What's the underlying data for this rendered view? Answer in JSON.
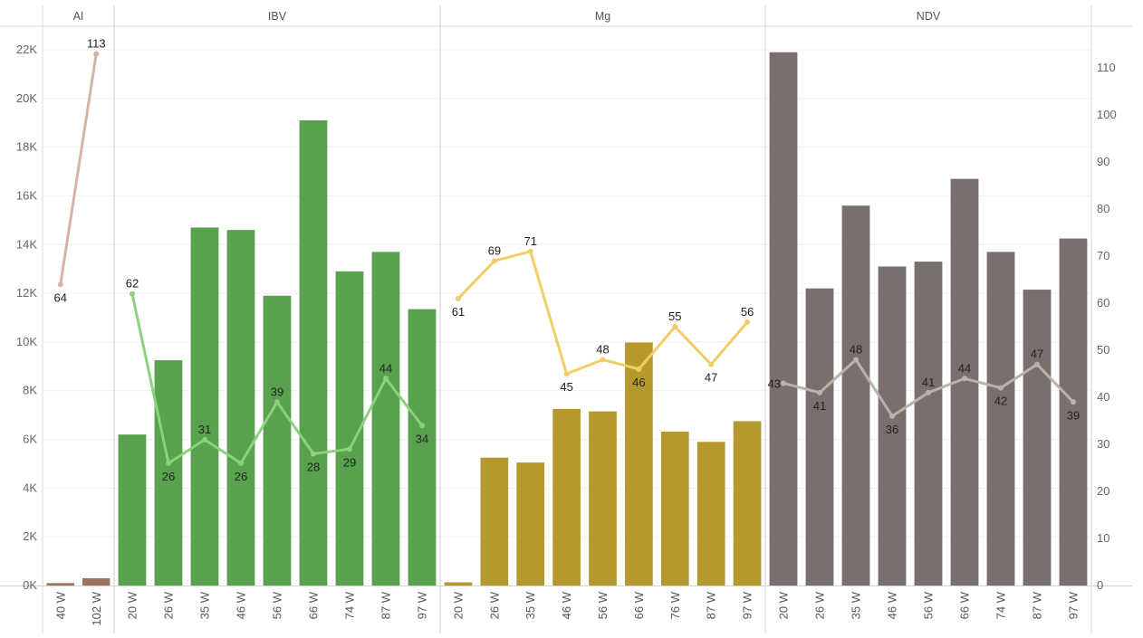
{
  "chart_data": {
    "type": "bar",
    "y_left": {
      "ticks": [
        "0K",
        "2K",
        "4K",
        "6K",
        "8K",
        "10K",
        "12K",
        "14K",
        "16K",
        "18K",
        "20K",
        "22K"
      ],
      "ylim": [
        0,
        22000
      ]
    },
    "y_right": {
      "ticks": [
        "0",
        "10",
        "20",
        "30",
        "40",
        "50",
        "60",
        "70",
        "80",
        "90",
        "100",
        "110"
      ],
      "ylim": [
        0,
        113
      ]
    },
    "panels": [
      {
        "name": "AI",
        "categories": [
          "40 W",
          "102 W"
        ],
        "bars": [
          100,
          300
        ],
        "line": [
          64,
          113
        ],
        "bar_color": "#9c7560",
        "line_color": "#d6b3a5",
        "label_pos": [
          "below",
          "above"
        ]
      },
      {
        "name": "IBV",
        "categories": [
          "20 W",
          "26 W",
          "35 W",
          "46 W",
          "56 W",
          "66 W",
          "74 W",
          "87 W",
          "97 W"
        ],
        "bars": [
          6200,
          9250,
          14700,
          14600,
          11900,
          19100,
          12900,
          13700,
          11350
        ],
        "line": [
          62,
          26,
          31,
          26,
          39,
          28,
          29,
          44,
          34
        ],
        "bar_color": "#59a14f",
        "line_color": "#8cd17d",
        "label_pos": [
          "above",
          "below",
          "above",
          "below",
          "above",
          "below",
          "below",
          "above",
          "below"
        ]
      },
      {
        "name": "Mg",
        "categories": [
          "20 W",
          "26 W",
          "35 W",
          "46 W",
          "56 W",
          "66 W",
          "76 W",
          "87 W",
          "97 W"
        ],
        "bars": [
          130,
          5250,
          5050,
          7250,
          7150,
          9980,
          6320,
          5900,
          6750
        ],
        "line": [
          61,
          69,
          71,
          45,
          48,
          46,
          55,
          47,
          56
        ],
        "bar_color": "#b6992d",
        "line_color": "#f1ce63",
        "label_pos": [
          "below",
          "above",
          "above",
          "below",
          "above",
          "below",
          "above",
          "below",
          "above"
        ]
      },
      {
        "name": "NDV",
        "categories": [
          "20 W",
          "26 W",
          "35 W",
          "46 W",
          "56 W",
          "66 W",
          "74 W",
          "87 W",
          "97 W"
        ],
        "bars": [
          21900,
          12200,
          15600,
          13100,
          13300,
          16700,
          13700,
          12150,
          14250
        ],
        "line": [
          43,
          41,
          48,
          36,
          41,
          44,
          42,
          47,
          39
        ],
        "bar_color": "#79706e",
        "line_color": "#bab0ac",
        "label_pos": [
          "left",
          "below",
          "above",
          "below",
          "above",
          "above",
          "below",
          "above",
          "below"
        ]
      }
    ]
  }
}
